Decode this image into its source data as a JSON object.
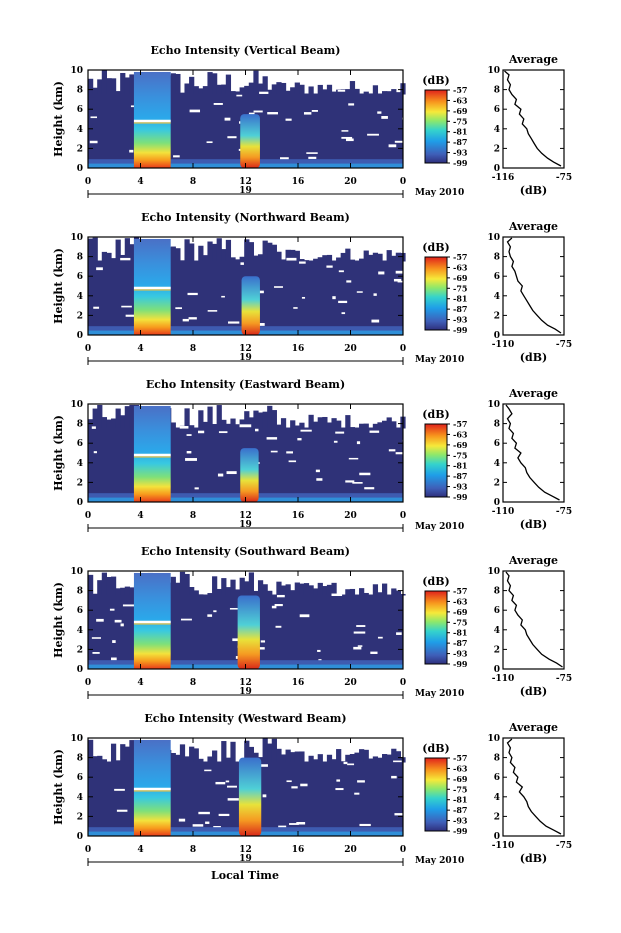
{
  "figure": {
    "xlabel": "Local Time",
    "ylabel": "Height (km)",
    "date_label": "May 2010",
    "colorbar_unit": "(dB)",
    "avg_title": "Average",
    "avg_xlabel": "(dB)"
  },
  "chart_data": [
    {
      "type": "heatmap",
      "title": "Echo Intensity (Vertical Beam)",
      "x": {
        "ticks": [
          "0",
          "4",
          "8",
          "12",
          "16",
          "20",
          "0"
        ],
        "range": [
          0,
          24
        ],
        "day_label": "19"
      },
      "y": {
        "ticks": [
          "0",
          "2",
          "4",
          "6",
          "8",
          "10"
        ],
        "range": [
          0,
          10
        ]
      },
      "colorbar": {
        "ticks": [
          "-57",
          "-63",
          "-69",
          "-75",
          "-81",
          "-87",
          "-93",
          "-99"
        ],
        "range": [
          -99,
          -57
        ]
      },
      "features": {
        "rain_bands": [
          {
            "start": 3.5,
            "end": 6.3,
            "top_km": 9.8
          },
          {
            "start": 11.6,
            "end": 13.1,
            "top_km": 5.5
          }
        ],
        "bright_band_km": 4.8
      },
      "average": {
        "xticks": [
          "-116",
          "-75"
        ],
        "xrange": [
          -116,
          -75
        ],
        "yticks": [
          "0",
          "2",
          "4",
          "6",
          "8",
          "10"
        ],
        "heights": [
          0.2,
          0.6,
          1.0,
          1.5,
          2.0,
          2.5,
          3.0,
          3.5,
          4.0,
          4.5,
          5.0,
          5.5,
          6.0,
          6.5,
          7.0,
          7.5,
          8.0,
          8.5,
          9.0,
          9.5,
          9.9
        ],
        "values": [
          -77,
          -82,
          -86,
          -90,
          -93,
          -95,
          -97,
          -99,
          -100,
          -103,
          -102,
          -105,
          -104,
          -108,
          -107,
          -110,
          -112,
          -111,
          -113,
          -112,
          -115
        ]
      }
    },
    {
      "type": "heatmap",
      "title": "Echo Intensity (Northward Beam)",
      "x": {
        "ticks": [
          "0",
          "4",
          "8",
          "12",
          "16",
          "20",
          "0"
        ],
        "range": [
          0,
          24
        ],
        "day_label": "19"
      },
      "y": {
        "ticks": [
          "0",
          "2",
          "4",
          "6",
          "8",
          "10"
        ],
        "range": [
          0,
          10
        ]
      },
      "colorbar": {
        "ticks": [
          "-57",
          "-63",
          "-69",
          "-75",
          "-81",
          "-87",
          "-93",
          "-99"
        ],
        "range": [
          -99,
          -57
        ]
      },
      "features": {
        "rain_bands": [
          {
            "start": 3.5,
            "end": 6.3,
            "top_km": 9.8
          },
          {
            "start": 11.7,
            "end": 13.1,
            "top_km": 6.0
          }
        ],
        "bright_band_km": 4.8
      },
      "average": {
        "xticks": [
          "-110",
          "-75"
        ],
        "xrange": [
          -116,
          -75
        ],
        "yticks": [
          "0",
          "2",
          "4",
          "6",
          "8",
          "10"
        ],
        "heights": [
          0.2,
          0.6,
          1.0,
          1.5,
          2.0,
          2.5,
          3.0,
          3.5,
          4.0,
          4.5,
          5.0,
          5.5,
          6.0,
          6.5,
          7.0,
          7.5,
          8.0,
          8.5,
          9.0,
          9.5,
          9.9
        ],
        "values": [
          -77,
          -81,
          -86,
          -90,
          -93,
          -96,
          -98,
          -100,
          -102,
          -104,
          -103,
          -106,
          -107,
          -108,
          -110,
          -109,
          -111,
          -112,
          -111,
          -113,
          -110
        ]
      }
    },
    {
      "type": "heatmap",
      "title": "Echo Intensity (Eastward Beam)",
      "x": {
        "ticks": [
          "0",
          "4",
          "8",
          "12",
          "16",
          "20",
          "0"
        ],
        "range": [
          0,
          24
        ],
        "day_label": "19"
      },
      "y": {
        "ticks": [
          "0",
          "2",
          "4",
          "6",
          "8",
          "10"
        ],
        "range": [
          0,
          10
        ]
      },
      "colorbar": {
        "ticks": [
          "-57",
          "-63",
          "-69",
          "-75",
          "-81",
          "-87",
          "-93",
          "-99"
        ],
        "range": [
          -99,
          -57
        ]
      },
      "features": {
        "rain_bands": [
          {
            "start": 3.5,
            "end": 6.3,
            "top_km": 9.8
          },
          {
            "start": 11.6,
            "end": 13.0,
            "top_km": 5.5
          }
        ],
        "bright_band_km": 4.8
      },
      "average": {
        "xticks": [
          "-110",
          "-75"
        ],
        "xrange": [
          -116,
          -75
        ],
        "yticks": [
          "0",
          "2",
          "4",
          "6",
          "8",
          "10"
        ],
        "heights": [
          0.2,
          0.6,
          1.0,
          1.5,
          2.0,
          2.5,
          3.0,
          3.5,
          4.0,
          4.5,
          5.0,
          5.5,
          6.0,
          6.5,
          7.0,
          7.5,
          8.0,
          8.5,
          9.0,
          9.5,
          9.9
        ],
        "values": [
          -78,
          -83,
          -88,
          -92,
          -95,
          -98,
          -100,
          -101,
          -104,
          -106,
          -104,
          -108,
          -107,
          -110,
          -109,
          -112,
          -111,
          -113,
          -110,
          -112,
          -114
        ]
      }
    },
    {
      "type": "heatmap",
      "title": "Echo Intensity (Southward Beam)",
      "x": {
        "ticks": [
          "0",
          "4",
          "8",
          "12",
          "16",
          "20",
          "0"
        ],
        "range": [
          0,
          24
        ],
        "day_label": "19"
      },
      "y": {
        "ticks": [
          "0",
          "2",
          "4",
          "6",
          "8",
          "10"
        ],
        "range": [
          0,
          10
        ]
      },
      "colorbar": {
        "ticks": [
          "-57",
          "-63",
          "-69",
          "-75",
          "-81",
          "-87",
          "-93",
          "-99"
        ],
        "range": [
          -99,
          -57
        ]
      },
      "features": {
        "rain_bands": [
          {
            "start": 3.5,
            "end": 6.3,
            "top_km": 9.8
          },
          {
            "start": 11.4,
            "end": 13.1,
            "top_km": 7.5
          }
        ],
        "bright_band_km": 4.8
      },
      "average": {
        "xticks": [
          "-110",
          "-75"
        ],
        "xrange": [
          -116,
          -75
        ],
        "yticks": [
          "0",
          "2",
          "4",
          "6",
          "8",
          "10"
        ],
        "heights": [
          0.2,
          0.6,
          1.0,
          1.5,
          2.0,
          2.5,
          3.0,
          3.5,
          4.0,
          4.5,
          5.0,
          5.5,
          6.0,
          6.5,
          7.0,
          7.5,
          8.0,
          8.5,
          9.0,
          9.5,
          9.9
        ],
        "values": [
          -76,
          -80,
          -85,
          -90,
          -93,
          -96,
          -98,
          -100,
          -101,
          -104,
          -103,
          -106,
          -108,
          -107,
          -110,
          -109,
          -112,
          -111,
          -113,
          -112,
          -114
        ]
      }
    },
    {
      "type": "heatmap",
      "title": "Echo Intensity (Westward Beam)",
      "x": {
        "ticks": [
          "0",
          "4",
          "8",
          "12",
          "16",
          "20",
          "0"
        ],
        "range": [
          0,
          24
        ],
        "day_label": "19"
      },
      "y": {
        "ticks": [
          "0",
          "2",
          "4",
          "6",
          "8",
          "10"
        ],
        "range": [
          0,
          10
        ]
      },
      "colorbar": {
        "ticks": [
          "-57",
          "-63",
          "-69",
          "-75",
          "-81",
          "-87",
          "-93",
          "-99"
        ],
        "range": [
          -99,
          -57
        ]
      },
      "features": {
        "rain_bands": [
          {
            "start": 3.5,
            "end": 6.3,
            "top_km": 9.8
          },
          {
            "start": 11.5,
            "end": 13.2,
            "top_km": 8.0
          }
        ],
        "bright_band_km": 4.8
      },
      "average": {
        "xticks": [
          "-110",
          "-75"
        ],
        "xrange": [
          -116,
          -75
        ],
        "yticks": [
          "0",
          "2",
          "4",
          "6",
          "8",
          "10"
        ],
        "heights": [
          0.2,
          0.6,
          1.0,
          1.5,
          2.0,
          2.5,
          3.0,
          3.5,
          4.0,
          4.5,
          5.0,
          5.5,
          6.0,
          6.5,
          7.0,
          7.5,
          8.0,
          8.5,
          9.0,
          9.5,
          9.9
        ],
        "values": [
          -77,
          -82,
          -87,
          -91,
          -94,
          -97,
          -99,
          -100,
          -102,
          -105,
          -103,
          -107,
          -106,
          -109,
          -108,
          -111,
          -110,
          -112,
          -111,
          -113,
          -110
        ]
      }
    }
  ]
}
